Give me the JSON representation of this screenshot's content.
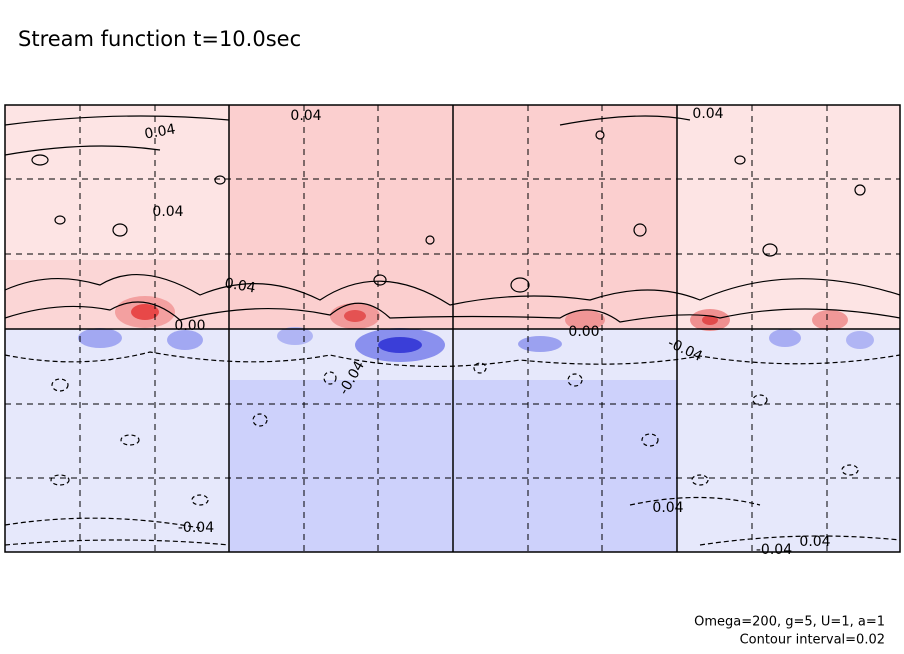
{
  "chart_data": {
    "type": "contour",
    "title": "Stream function t=10.0sec",
    "annotations": [
      "Omega=200, g=5, U=1, a=1",
      "Contour interval=0.02"
    ],
    "contour_labels": [
      0.04,
      0.04,
      0.04,
      0.04,
      {
        "value": 0,
        "label": "0.00"
      },
      {
        "value": 0,
        "label": "0.00"
      },
      0.04,
      -0.04,
      -0.04,
      0.04,
      -0.04,
      -0.04,
      0.04
    ]
  }
}
